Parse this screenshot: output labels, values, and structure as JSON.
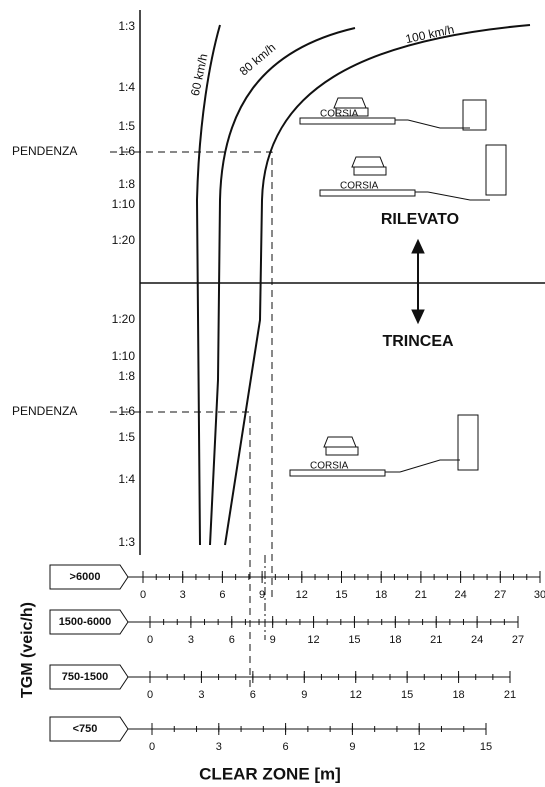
{
  "graph": {
    "slopes_upper": [
      "1:3",
      "1:4",
      "1:5",
      "1:6",
      "1:8",
      "1:10",
      "1:20"
    ],
    "slopes_lower": [
      "1:20",
      "1:10",
      "1:8",
      "1:6",
      "1:5",
      "1:4",
      "1:3"
    ],
    "pendenza": [
      "PENDENZA",
      "PENDENZA"
    ],
    "curves": [
      "60 km/h",
      "80 km/h",
      "100 km/h"
    ],
    "corsia": [
      "CORSIA",
      "CORSIA",
      "CORSIA"
    ],
    "rilevato": "RILEVATO",
    "trincea": "TRINCEA"
  },
  "scales": [
    {
      "label": ">6000",
      "ticks": [
        0,
        3,
        6,
        9,
        12,
        15,
        18,
        21,
        24,
        27,
        30
      ]
    },
    {
      "label": "1500-6000",
      "ticks": [
        0,
        3,
        6,
        9,
        12,
        15,
        18,
        21,
        24,
        27
      ]
    },
    {
      "label": "750-1500",
      "ticks": [
        0,
        3,
        6,
        9,
        12,
        15,
        18,
        21
      ]
    },
    {
      "label": "<750",
      "ticks": [
        0,
        3,
        6,
        9,
        12,
        15
      ]
    }
  ],
  "axis_label": "TGM (veic/h)",
  "x_label": "CLEAR ZONE [m]"
}
